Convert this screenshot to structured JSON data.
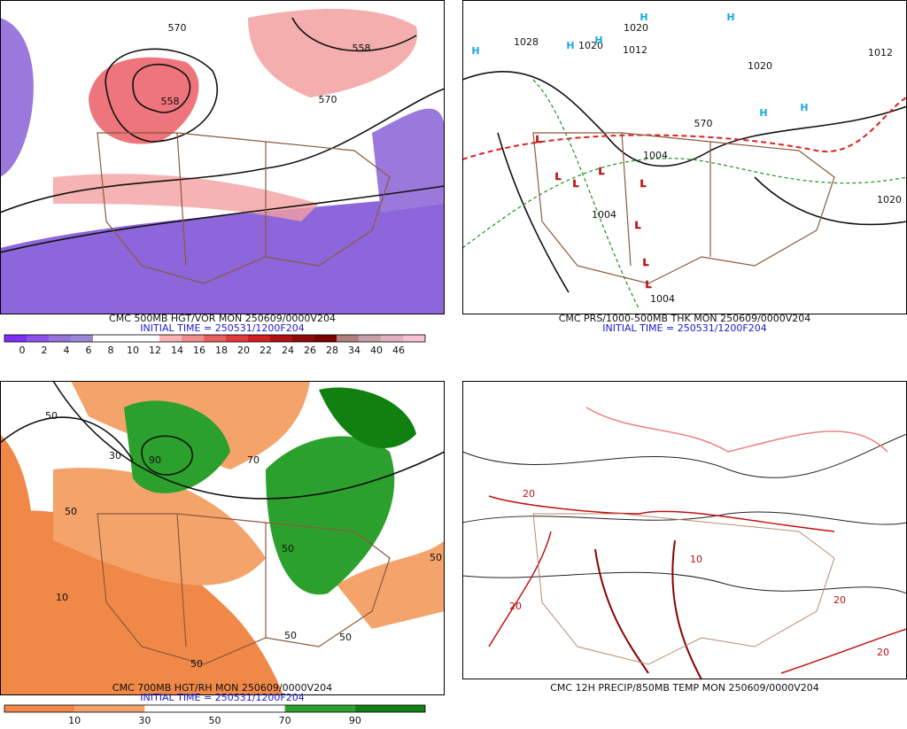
{
  "panels": [
    {
      "caption": "CMC 500MB HGT/VOR MON 250609/0000V204",
      "initial_time": "INITIAL TIME = 250531/1200F204",
      "labels": [
        "570",
        "558",
        "558",
        "570"
      ],
      "highs": [],
      "lows": [],
      "colorbar": {
        "labels": [
          0,
          2,
          4,
          6,
          8,
          10,
          12,
          14,
          16,
          18,
          20,
          22,
          24,
          26,
          28,
          34,
          40,
          46
        ],
        "colors": [
          "#7f2ff5",
          "#8c52ec",
          "#9474dc",
          "#9c8ad6",
          "#ffffff",
          "#ffffff",
          "#ffffff",
          "#f8b4b4",
          "#f08c8c",
          "#e86060",
          "#e23a3a",
          "#d21e1e",
          "#b01010",
          "#8e0a0a",
          "#7a0000",
          "#b08080",
          "#c8a0a8",
          "#e0b0c0",
          "#f8c0d0"
        ]
      }
    },
    {
      "caption": "CMC PRS/1000-500MB THK MON 250609/0000V204",
      "initial_time": "INITIAL TIME = 250531/1200F204",
      "labels": [
        "1028",
        "1020",
        "1020",
        "1012",
        "1020",
        "1012",
        "1020",
        "1004",
        "1004",
        "1004",
        "570"
      ],
      "highs": [
        "H",
        "H",
        "H",
        "H",
        "H",
        "H",
        "H"
      ],
      "lows": [
        "L",
        "L",
        "L",
        "L",
        "L",
        "L",
        "L",
        "L"
      ]
    },
    {
      "caption": "CMC 700MB HGT/RH MON 250609/0000V204",
      "initial_time": "INITIAL TIME = 250531/1200F204",
      "labels": [
        "50",
        "50",
        "30",
        "90",
        "70",
        "50",
        "10",
        "50",
        "50",
        "50",
        "50"
      ],
      "highs": [],
      "lows": [],
      "colorbar": {
        "labels": [
          10,
          30,
          50,
          70,
          90
        ],
        "colors": [
          "#f08848",
          "#f4a36a",
          "#ffffff",
          "#ffffff",
          "#2ca02c",
          "#108010"
        ]
      }
    },
    {
      "caption": "CMC 12H PRECIP/850MB TEMP MON 250609/0000V204",
      "labels": [
        "20",
        "20",
        "10",
        "20",
        "20"
      ],
      "highs": [],
      "lows": []
    }
  ]
}
